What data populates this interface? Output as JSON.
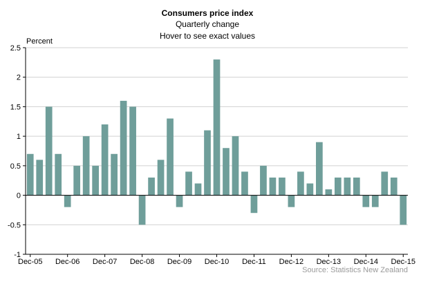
{
  "chart_data": {
    "type": "bar",
    "title": "Consumers price index",
    "subtitle": "Quarterly change",
    "hint": "Hover to see exact values",
    "ylabel": "Percent",
    "xlabel": "",
    "ylim": [
      -1,
      2.5
    ],
    "yticks": [
      -1,
      -0.5,
      0,
      0.5,
      1,
      1.5,
      2,
      2.5
    ],
    "ytick_labels": [
      "-1",
      "-0.5",
      "0",
      "0.5",
      "1",
      "1.5",
      "2",
      "2.5"
    ],
    "grid": true,
    "bar_color": "#6f9e9a",
    "source": "Source: Statistics New Zealand",
    "categories": [
      "Dec-05",
      "Mar-06",
      "Jun-06",
      "Sep-06",
      "Dec-06",
      "Mar-07",
      "Jun-07",
      "Sep-07",
      "Dec-07",
      "Mar-08",
      "Jun-08",
      "Sep-08",
      "Dec-08",
      "Mar-09",
      "Jun-09",
      "Sep-09",
      "Dec-09",
      "Mar-10",
      "Jun-10",
      "Sep-10",
      "Dec-10",
      "Mar-11",
      "Jun-11",
      "Sep-11",
      "Dec-11",
      "Mar-12",
      "Jun-12",
      "Sep-12",
      "Dec-12",
      "Mar-13",
      "Jun-13",
      "Sep-13",
      "Dec-13",
      "Mar-14",
      "Jun-14",
      "Sep-14",
      "Dec-14",
      "Mar-15",
      "Jun-15",
      "Sep-15",
      "Dec-15"
    ],
    "values": [
      0.7,
      0.6,
      1.5,
      0.7,
      -0.2,
      0.5,
      1.0,
      0.5,
      1.2,
      0.7,
      1.6,
      1.5,
      -0.5,
      0.3,
      0.6,
      1.3,
      -0.2,
      0.4,
      0.2,
      1.1,
      2.3,
      0.8,
      1.0,
      0.4,
      -0.3,
      0.5,
      0.3,
      0.3,
      -0.2,
      0.4,
      0.2,
      0.9,
      0.1,
      0.3,
      0.3,
      0.3,
      -0.2,
      -0.2,
      0.4,
      0.3,
      -0.5
    ],
    "x_tick_labels": [
      "Dec-05",
      "Dec-06",
      "Dec-07",
      "Dec-08",
      "Dec-09",
      "Dec-10",
      "Dec-11",
      "Dec-12",
      "Dec-13",
      "Dec-14",
      "Dec-15"
    ]
  }
}
